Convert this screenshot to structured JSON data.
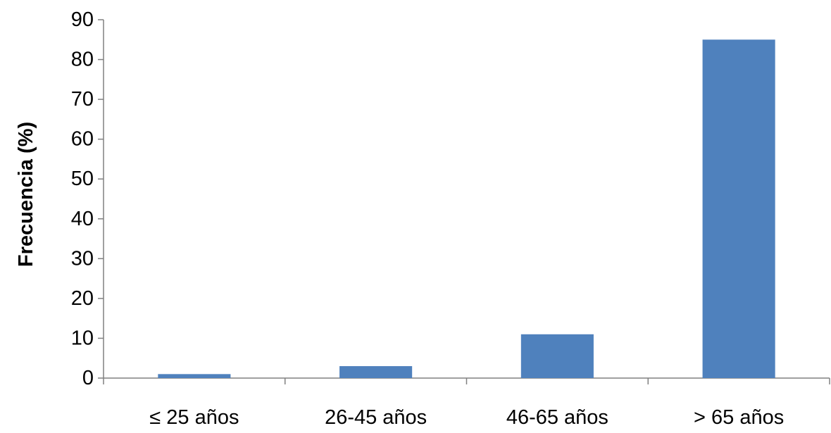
{
  "chart_data": {
    "type": "bar",
    "categories": [
      "≤ 25 años",
      "26-45 años",
      "46-65 años",
      "> 65 años"
    ],
    "values": [
      1,
      3,
      11,
      85
    ],
    "title": "",
    "xlabel": "",
    "ylabel": "Frecuencia (%)",
    "ylim": [
      0,
      90
    ],
    "yticks": [
      0,
      10,
      20,
      30,
      40,
      50,
      60,
      70,
      80,
      90
    ],
    "grid": false,
    "legend": "none",
    "bar_color": "#4F81BD",
    "axis_color": "#808080"
  }
}
